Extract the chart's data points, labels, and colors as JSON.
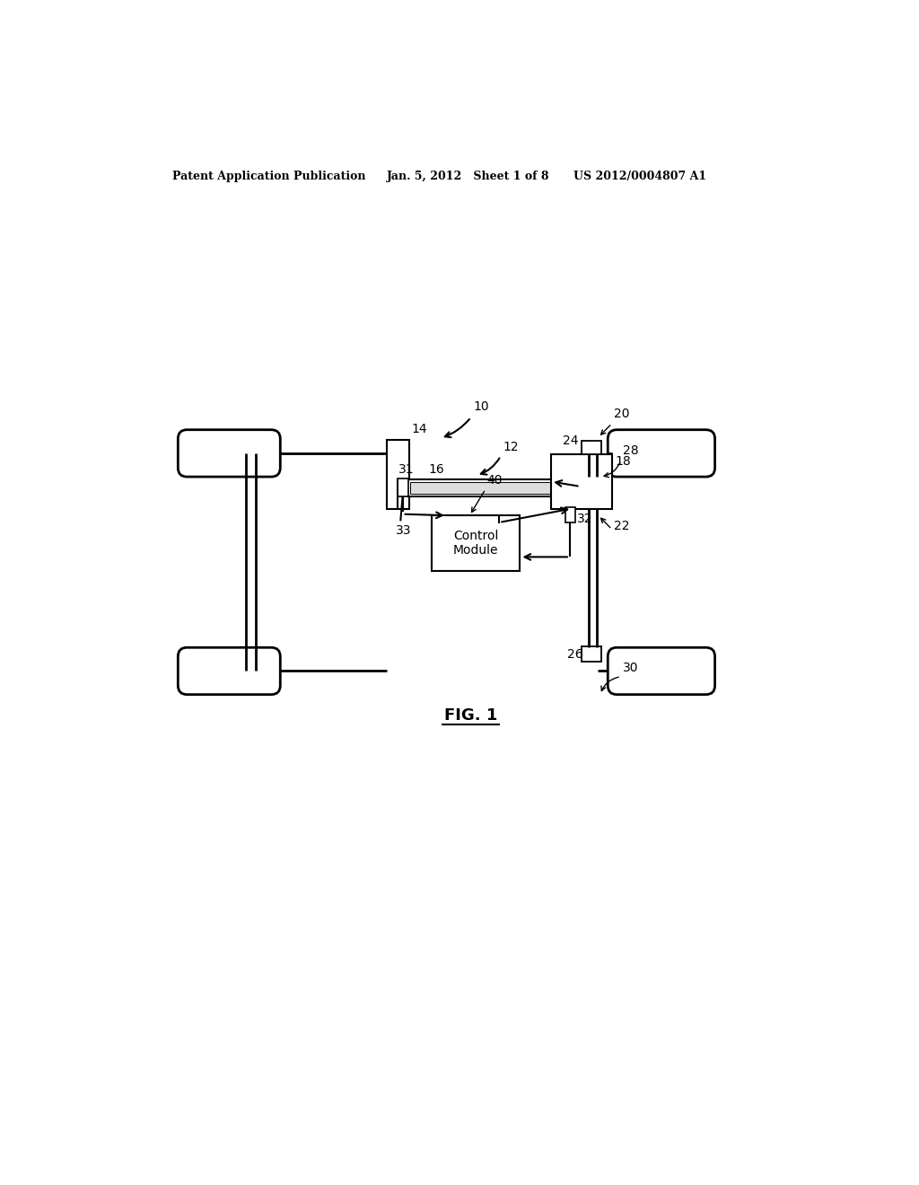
{
  "bg_color": "#ffffff",
  "line_color": "#000000",
  "header_left": "Patent Application Publication",
  "header_center": "Jan. 5, 2012   Sheet 1 of 8",
  "header_right": "US 2012/0004807 A1",
  "fig_label": "FIG. 1",
  "label_10": "10",
  "label_12": "12",
  "label_14": "14",
  "label_16": "16",
  "label_18": "18",
  "label_20": "20",
  "label_22": "22",
  "label_24": "24",
  "label_26": "26",
  "label_28": "28",
  "label_30": "30",
  "label_31": "31",
  "label_32": "32",
  "label_33": "33",
  "label_40": "40",
  "control_module_text": "Control\nModule"
}
